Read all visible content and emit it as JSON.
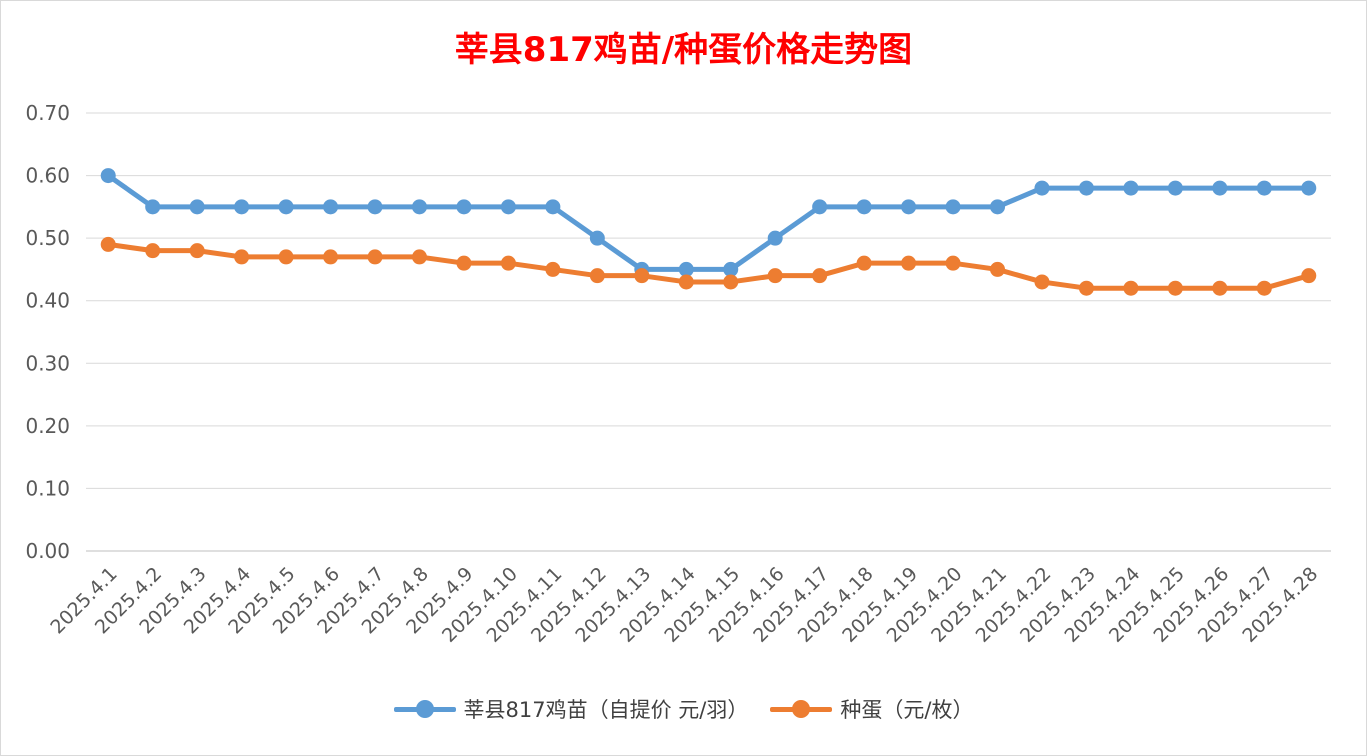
{
  "chart_data": {
    "type": "line",
    "title": "莘县817鸡苗/种蛋价格走势图",
    "categories": [
      "2025.4.1",
      "2025.4.2",
      "2025.4.3",
      "2025.4.4",
      "2025.4.5",
      "2025.4.6",
      "2025.4.7",
      "2025.4.8",
      "2025.4.9",
      "2025.4.10",
      "2025.4.11",
      "2025.4.12",
      "2025.4.13",
      "2025.4.14",
      "2025.4.15",
      "2025.4.16",
      "2025.4.17",
      "2025.4.18",
      "2025.4.19",
      "2025.4.20",
      "2025.4.21",
      "2025.4.22",
      "2025.4.23",
      "2025.4.24",
      "2025.4.25",
      "2025.4.26",
      "2025.4.27",
      "2025.4.28"
    ],
    "series": [
      {
        "name": "莘县817鸡苗（自提价 元/羽）",
        "color": "#5b9bd5",
        "values": [
          0.6,
          0.55,
          0.55,
          0.55,
          0.55,
          0.55,
          0.55,
          0.55,
          0.55,
          0.55,
          0.55,
          0.5,
          0.45,
          0.45,
          0.45,
          0.5,
          0.55,
          0.55,
          0.55,
          0.55,
          0.55,
          0.58,
          0.58,
          0.58,
          0.58,
          0.58,
          0.58,
          0.58
        ]
      },
      {
        "name": "种蛋（元/枚）",
        "color": "#ed7d31",
        "values": [
          0.49,
          0.48,
          0.48,
          0.47,
          0.47,
          0.47,
          0.47,
          0.47,
          0.46,
          0.46,
          0.45,
          0.44,
          0.44,
          0.43,
          0.43,
          0.44,
          0.44,
          0.46,
          0.46,
          0.46,
          0.45,
          0.43,
          0.42,
          0.42,
          0.42,
          0.42,
          0.42,
          0.44
        ]
      }
    ],
    "yticks": [
      "0.00",
      "0.10",
      "0.20",
      "0.30",
      "0.40",
      "0.50",
      "0.60",
      "0.70"
    ],
    "ylim": [
      0,
      0.7
    ],
    "grid": true,
    "legend_position": "bottom"
  }
}
